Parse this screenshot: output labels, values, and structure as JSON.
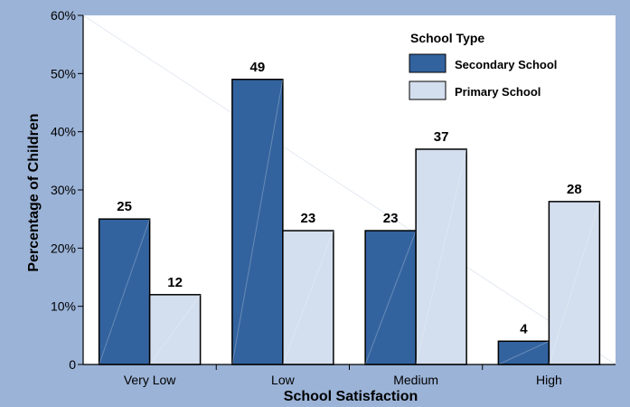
{
  "chart_data": {
    "type": "bar",
    "title": "",
    "xlabel": "School Satisfaction",
    "ylabel": "Percentage of Children",
    "ylim": [
      0,
      60
    ],
    "yticks": [
      "0",
      "10%",
      "20%",
      "30%",
      "40%",
      "50%",
      "60%"
    ],
    "categories": [
      "Very Low",
      "Low",
      "Medium",
      "High"
    ],
    "series": [
      {
        "name": "Secondary School",
        "values": [
          25,
          49,
          23,
          4
        ],
        "labels": [
          "25",
          "49",
          "23",
          "4"
        ]
      },
      {
        "name": "Primary School",
        "values": [
          12,
          23,
          37,
          28
        ],
        "labels": [
          "12",
          "23",
          "37",
          "28"
        ]
      }
    ],
    "legend": {
      "title": "School Type",
      "position": "top-right"
    },
    "grid": false
  },
  "colors": {
    "background": "#9bb3d7",
    "plot_area": "#ffffff",
    "secondary": "#33639f",
    "primary": "#d3deee"
  }
}
